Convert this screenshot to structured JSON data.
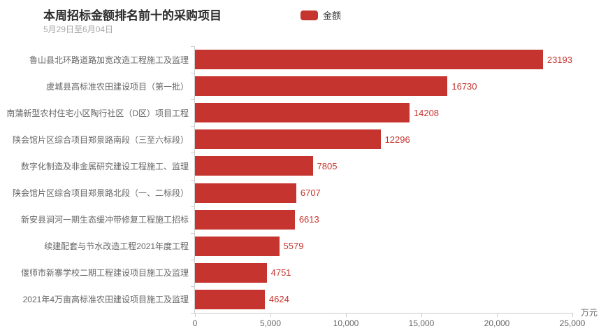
{
  "header": {
    "title": "本周招标金额排名前十的采购项目",
    "subtitle": "5月29日至6月04日"
  },
  "legend": {
    "label": "金额",
    "color": "#c5342e"
  },
  "chart_data": {
    "type": "bar",
    "orientation": "horizontal",
    "title": "本周招标金额排名前十的采购项目",
    "subtitle": "5月29日至6月04日",
    "series_name": "金额",
    "categories": [
      "鲁山县北环路道路加宽改造工程施工及监理",
      "虞城县高标准农田建设项目（第一批）",
      "南蒲新型农村住宅小区陶行社区（D区）项目工程",
      "陕会馆片区综合项目郑景路南段（三至六标段）",
      "数字化制造及非金属研究建设工程施工、监理",
      "陕会馆片区综合项目郑景路北段（一、二标段）",
      "新安县涧河一期生态缓冲带修复工程施工招标",
      "续建配套与节水改造工程2021年度工程",
      "偃师市新寨学校二期工程建设项目施工及监理",
      "2021年4万亩高标准农田建设项目施工及监理"
    ],
    "values": [
      23193,
      16730,
      14208,
      12296,
      7805,
      6707,
      6613,
      5579,
      4751,
      4624
    ],
    "xlim": [
      0,
      25000
    ],
    "x_ticks": [
      "0",
      "5,000",
      "10,000",
      "15,000",
      "20,000",
      "25,000"
    ],
    "xlabel_unit": "万元",
    "bar_color": "#c5342e",
    "value_label_color": "#c5342e",
    "grid": false,
    "legend_position": "top"
  }
}
